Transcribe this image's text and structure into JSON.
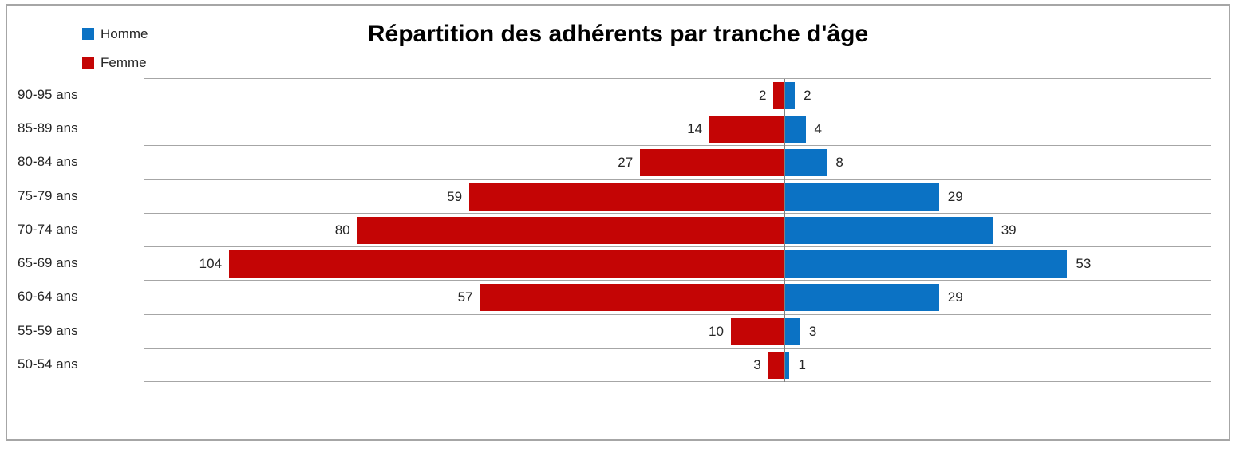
{
  "title": "Répartition des adhérents par tranche d'âge",
  "chart_data": {
    "type": "bar",
    "subtype": "population-pyramid",
    "orientation": "horizontal",
    "title": "Répartition des adhérents par tranche d'âge",
    "categories": [
      "90-95 ans",
      "85-89 ans",
      "80-84 ans",
      "75-79 ans",
      "70-74 ans",
      "65-69 ans",
      "60-64 ans",
      "55-59 ans",
      "50-54 ans"
    ],
    "series": [
      {
        "name": "Homme",
        "side": "right",
        "color": "#0B72C4",
        "values": [
          2,
          4,
          8,
          29,
          39,
          53,
          29,
          3,
          1
        ]
      },
      {
        "name": "Femme",
        "side": "left",
        "color": "#C40505",
        "values": [
          2,
          14,
          27,
          59,
          80,
          104,
          57,
          10,
          3
        ]
      }
    ],
    "axis_range": [
      -120,
      80
    ],
    "xlabel": "",
    "ylabel": "",
    "legend_position": "top-left",
    "grid": "horizontal row separators only",
    "value_labels": "outside bar ends",
    "colors": {
      "homme": "#0B72C4",
      "femme": "#C40505",
      "gridline": "#A6A6A6",
      "axis_line": "#808080",
      "frame_border": "#A6A6A6",
      "text": "#262626",
      "title": "#000000"
    }
  }
}
